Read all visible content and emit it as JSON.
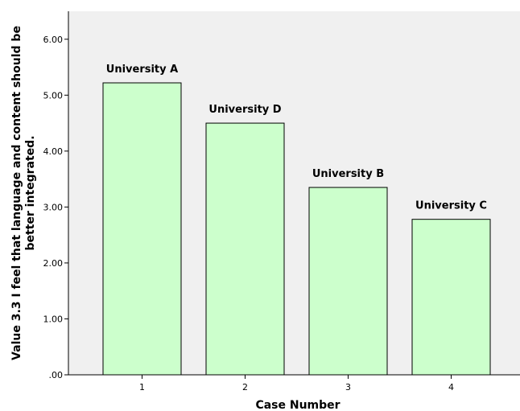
{
  "chart_data": {
    "type": "bar",
    "categories": [
      "1",
      "2",
      "3",
      "4"
    ],
    "values": [
      5.22,
      4.5,
      3.35,
      2.78
    ],
    "bar_labels": [
      "University A",
      "University D",
      "University B",
      "University C"
    ],
    "ylim": [
      0,
      6.5
    ],
    "yticks": [
      ".00",
      "1.00",
      "2.00",
      "3.00",
      "4.00",
      "5.00",
      "6.00"
    ],
    "ytick_values": [
      0,
      1,
      2,
      3,
      4,
      5,
      6
    ],
    "xlabel": "Case Number",
    "ylabel_lines": [
      "Value 3.3 I feel that language and content should be",
      "better integrated."
    ],
    "grid": false,
    "colors": {
      "plot_background": "#f0f0f0",
      "bar_fill": "#ccffcc",
      "bar_stroke": "#000000",
      "axis": "#000000"
    }
  }
}
